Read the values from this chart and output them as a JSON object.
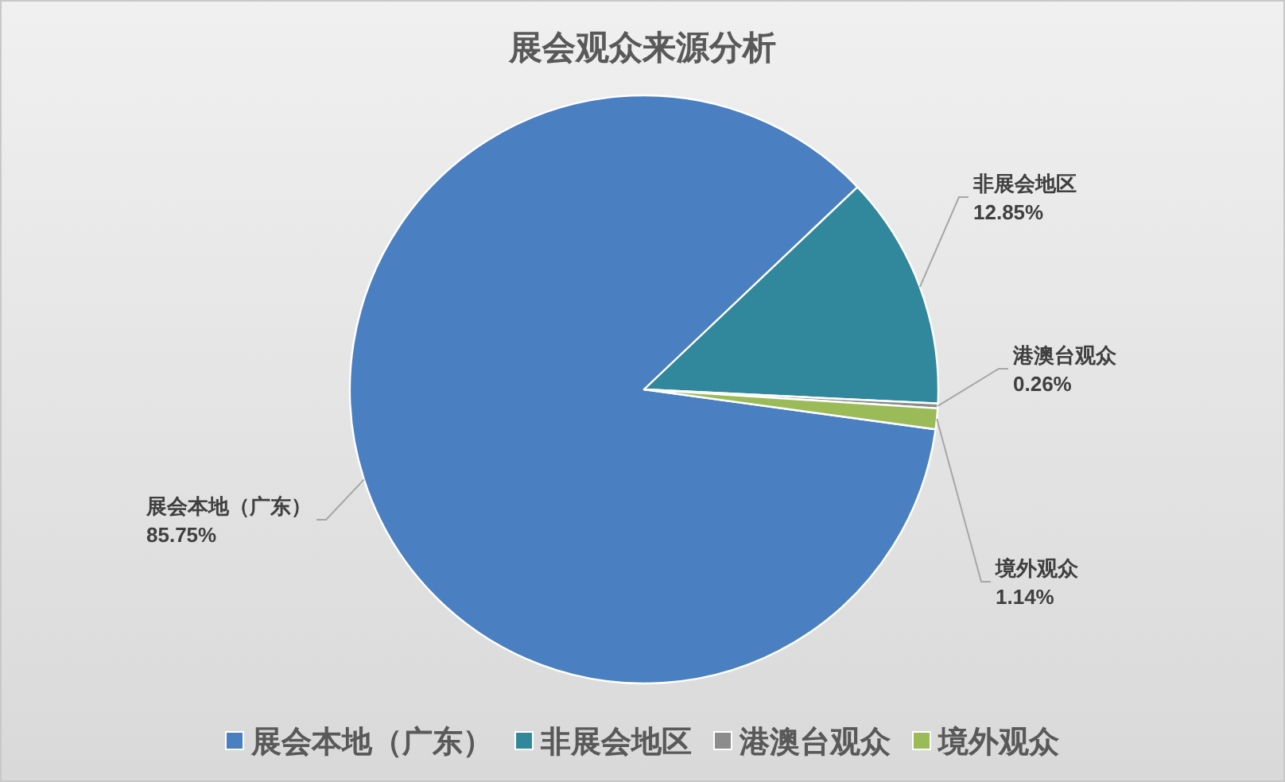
{
  "chart_data": {
    "type": "pie",
    "title": "展会观众来源分析",
    "categories": [
      "展会本地（广东）",
      "非展会地区",
      "港澳台观众",
      "境外观众"
    ],
    "values": [
      85.75,
      12.85,
      0.26,
      1.14
    ],
    "value_labels": [
      "85.75%",
      "12.85%",
      "0.26%",
      "1.14%"
    ],
    "colors": [
      "#4a7fc1",
      "#31879b",
      "#8c8c8c",
      "#9bbb59"
    ],
    "legend": "bottom"
  }
}
